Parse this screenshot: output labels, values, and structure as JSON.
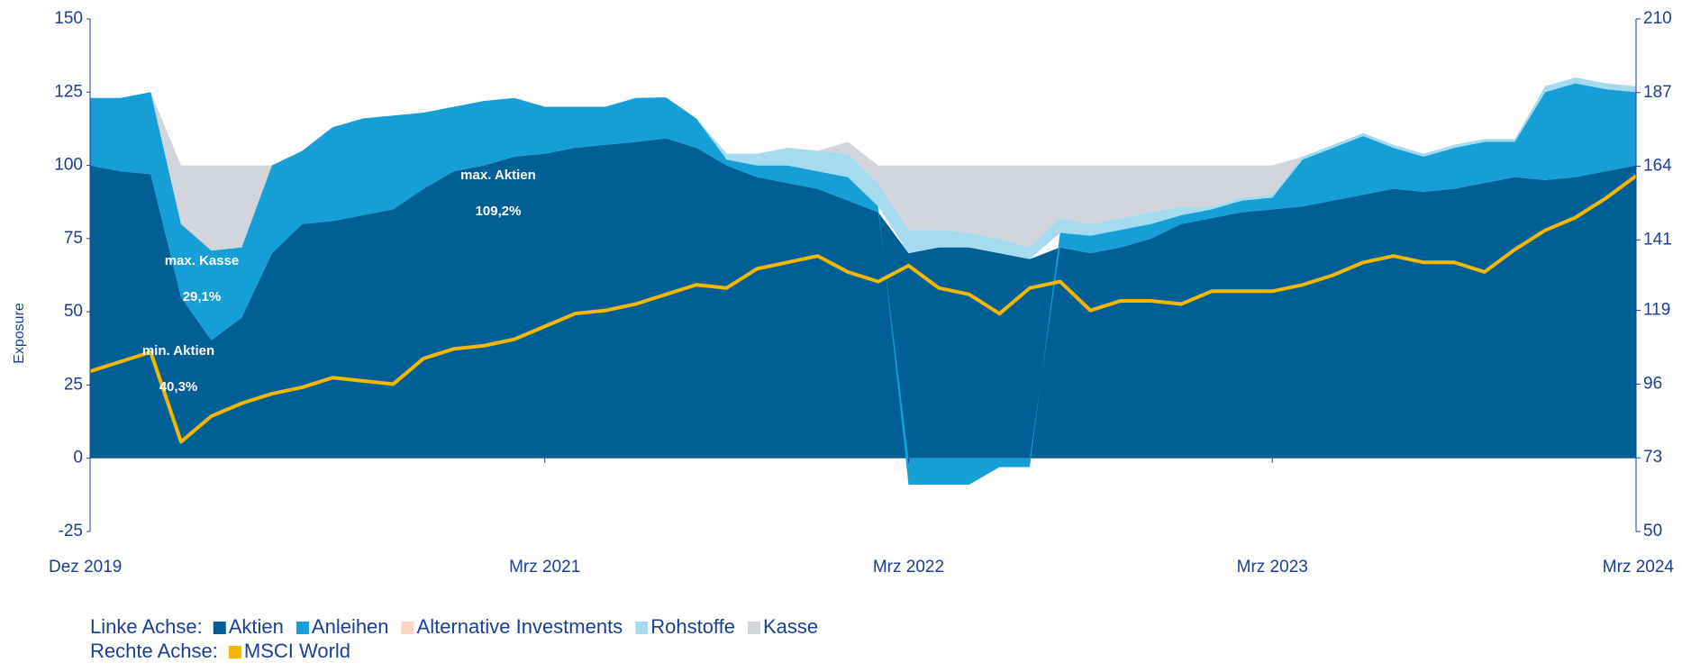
{
  "chart_data": {
    "type": "stacked_area_line",
    "y_label": "Exposure",
    "x": [
      "2019-12",
      "2020-01",
      "2020-02",
      "2020-03",
      "2020-04",
      "2020-05",
      "2020-06",
      "2020-07",
      "2020-08",
      "2020-09",
      "2020-10",
      "2020-11",
      "2020-12",
      "2021-01",
      "2021-02",
      "2021-03",
      "2021-04",
      "2021-05",
      "2021-06",
      "2021-07",
      "2021-08",
      "2021-09",
      "2021-10",
      "2021-11",
      "2021-12",
      "2022-01",
      "2022-02",
      "2022-03",
      "2022-04",
      "2022-05",
      "2022-06",
      "2022-07",
      "2022-08",
      "2022-09",
      "2022-10",
      "2022-11",
      "2022-12",
      "2023-01",
      "2023-02",
      "2023-03",
      "2023-04",
      "2023-05",
      "2023-06",
      "2023-07",
      "2023-08",
      "2023-09",
      "2023-10",
      "2023-11",
      "2023-12",
      "2024-01",
      "2024-02",
      "2024-03"
    ],
    "xticks": [
      {
        "value": "2019-12",
        "label": "Dez 2019"
      },
      {
        "value": "2021-03",
        "label": "Mrz 2021"
      },
      {
        "value": "2022-03",
        "label": "Mrz 2022"
      },
      {
        "value": "2023-03",
        "label": "Mrz 2023"
      },
      {
        "value": "2024-03",
        "label": "Mrz 2024"
      }
    ],
    "ylim": [
      -25,
      150
    ],
    "yticks": [
      -25,
      0,
      25,
      50,
      75,
      100,
      125,
      150
    ],
    "y2lim": [
      50,
      210
    ],
    "y2ticks": [
      50,
      73,
      96,
      119,
      141,
      164,
      187,
      210
    ],
    "legend_labels": [
      "Linke Achse:",
      "Rechte Achse:"
    ],
    "series": [
      {
        "name": "Aktien",
        "color": "#005f94",
        "values": [
          100,
          98,
          97,
          55,
          40.3,
          48,
          70,
          80,
          81,
          83,
          85,
          92,
          98,
          100,
          103,
          104,
          106,
          107,
          108,
          109.2,
          106,
          100,
          96,
          94,
          92,
          88,
          84,
          70,
          72,
          72,
          70,
          68,
          72,
          70,
          72,
          75,
          80,
          82,
          84,
          85,
          86,
          88,
          90,
          92,
          91,
          92,
          94,
          96,
          95,
          96,
          98,
          100
        ]
      },
      {
        "name": "Anleihen",
        "color": "#159fd6",
        "values": [
          23,
          25,
          28,
          25,
          30.6,
          24,
          30,
          25,
          32,
          33,
          32,
          26,
          22,
          22,
          20,
          16,
          14,
          13,
          15,
          14,
          10,
          2,
          4,
          6,
          6,
          8,
          2,
          -9,
          -9,
          -9,
          -3,
          -3,
          5,
          6,
          6,
          5,
          3,
          3,
          4,
          4,
          16,
          18,
          20,
          14,
          12,
          14,
          14,
          12,
          30,
          32,
          28,
          25
        ]
      },
      {
        "name": "Alternative Investments",
        "color": "#fbd5c7",
        "values": [
          0,
          0,
          0,
          0,
          0,
          0,
          0,
          0,
          0,
          0,
          0,
          0,
          0,
          0,
          0,
          0,
          0,
          0,
          0,
          0,
          0,
          0,
          0,
          0,
          0,
          0,
          0,
          0,
          0,
          0,
          0,
          0,
          0,
          0,
          0,
          0,
          0,
          0,
          0,
          0,
          0,
          0,
          0,
          0,
          0,
          0,
          0,
          0,
          0,
          0,
          0,
          0
        ]
      },
      {
        "name": "Rohstoffe",
        "color": "#a6daee",
        "values": [
          0,
          0,
          0,
          0,
          0,
          0,
          0,
          0,
          0,
          0,
          0,
          0,
          0,
          0,
          0,
          0,
          0,
          0,
          0,
          0,
          0,
          2,
          4,
          6,
          7,
          8,
          8,
          8,
          6,
          5,
          5,
          4,
          5,
          4,
          4,
          4,
          3,
          1,
          1,
          1,
          1,
          1,
          1,
          1,
          1,
          1,
          1,
          1,
          2,
          2,
          2,
          2
        ]
      },
      {
        "name": "Kasse",
        "color": "#d3d5dd",
        "values": [
          0,
          0,
          0,
          20,
          29.1,
          28,
          0,
          0,
          0,
          0,
          0,
          0,
          0,
          0,
          0,
          0,
          0,
          0,
          0,
          0,
          0,
          0,
          0,
          0,
          0,
          4,
          6,
          22,
          22,
          23,
          25,
          28,
          18,
          20,
          18,
          16,
          14,
          14,
          11,
          10,
          0,
          0,
          0,
          0,
          0,
          0,
          0,
          0,
          0,
          0,
          0,
          0
        ]
      },
      {
        "name": "MSCI World",
        "color": "#f5b700",
        "axis": "y2",
        "values": [
          100,
          103,
          106,
          78,
          86,
          90,
          93,
          95,
          98,
          97,
          96,
          104,
          107,
          108,
          110,
          114,
          118,
          119,
          121,
          124,
          127,
          126,
          132,
          134,
          136,
          131,
          128,
          133,
          126,
          124,
          118,
          126,
          128,
          119,
          122,
          122,
          121,
          125,
          125,
          125,
          127,
          130,
          134,
          136,
          134,
          134,
          131,
          138,
          144,
          148,
          154,
          161
        ]
      }
    ],
    "annotations": [
      {
        "text": "max. Aktien",
        "value_text": "109,2%"
      },
      {
        "text": "max. Kasse",
        "value_text": "29,1%"
      },
      {
        "text": "min. Aktien",
        "value_text": "40,3%"
      }
    ]
  }
}
